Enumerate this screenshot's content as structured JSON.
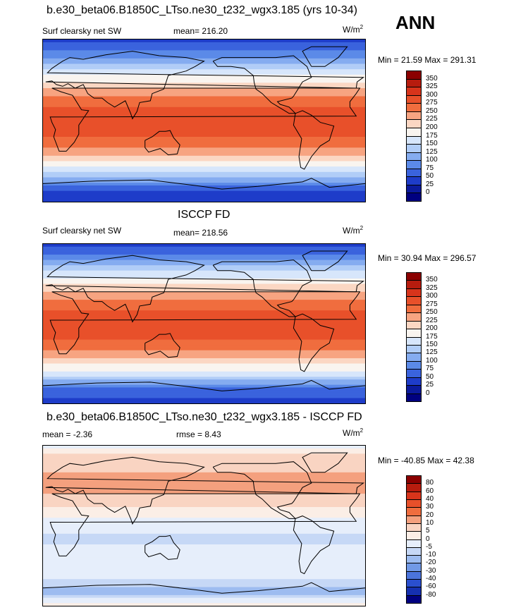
{
  "header": {
    "run_title": "b.e30_beta06.B1850C_LTso.ne30_t232_wgx3.185 (yrs 10-34)",
    "season": "ANN"
  },
  "panels": [
    {
      "title": "",
      "variable": "Surf clearsky net SW",
      "stat_left": "mean= 216.20",
      "stat_right": "",
      "units": "W/m",
      "units_sup": "2",
      "minmax": "Min =  21.59 Max = 291.31",
      "colorbar_labels": [
        "350",
        "325",
        "300",
        "275",
        "250",
        "225",
        "200",
        "175",
        "150",
        "125",
        "100",
        "75",
        "50",
        "25",
        "0"
      ],
      "colors": [
        "#8b0000",
        "#b71c0e",
        "#d8341b",
        "#e8502a",
        "#f06d3e",
        "#f7a481",
        "#fbd7c3",
        "#f9f4ef",
        "#d7e6fb",
        "#b1cdf7",
        "#85acf0",
        "#5b8ae8",
        "#3a63dd",
        "#1e3cc9",
        "#0b1a9c",
        "#000080"
      ]
    },
    {
      "title": "ISCCP FD",
      "variable": "Surf clearsky net SW",
      "stat_left": "mean= 218.56",
      "stat_right": "",
      "units": "W/m",
      "units_sup": "2",
      "minmax": "Min =  30.94 Max = 296.57",
      "colorbar_labels": [
        "350",
        "325",
        "300",
        "275",
        "250",
        "225",
        "200",
        "175",
        "150",
        "125",
        "100",
        "75",
        "50",
        "25",
        "0"
      ],
      "colors": [
        "#8b0000",
        "#b71c0e",
        "#d8341b",
        "#e8502a",
        "#f06d3e",
        "#f7a481",
        "#fbd7c3",
        "#f9f4ef",
        "#d7e6fb",
        "#b1cdf7",
        "#85acf0",
        "#5b8ae8",
        "#3a63dd",
        "#1e3cc9",
        "#0b1a9c",
        "#000080"
      ]
    },
    {
      "title": "b.e30_beta06.B1850C_LTso.ne30_t232_wgx3.185 - ISCCP FD",
      "variable": "mean =  -2.36",
      "stat_left": "rmse =   8.43",
      "stat_right": "",
      "units": "W/m",
      "units_sup": "2",
      "minmax": "Min = -40.85 Max =  42.38",
      "colorbar_labels": [
        "80",
        "60",
        "40",
        "30",
        "20",
        "10",
        "5",
        "0",
        "-5",
        "-10",
        "-20",
        "-30",
        "-40",
        "-60",
        "-80"
      ],
      "colors": [
        "#8b0000",
        "#b71c0e",
        "#d8341b",
        "#e8502a",
        "#f06d3e",
        "#f4a07e",
        "#f9d4c2",
        "#fbeee6",
        "#e6eefb",
        "#c6d8f6",
        "#9dbcf0",
        "#7199e6",
        "#4b74dc",
        "#2a4fcf",
        "#1530b0",
        "#000080"
      ]
    }
  ],
  "chart_data": [
    {
      "type": "heatmap",
      "title": "b.e30_beta06.B1850C_LTso.ne30_t232_wgx3.185 (yrs 10-34)",
      "variable": "Surf clearsky net SW",
      "units": "W/m2",
      "mean": 216.2,
      "min": 21.59,
      "max": 291.31,
      "levels": [
        0,
        25,
        50,
        75,
        100,
        125,
        150,
        175,
        200,
        225,
        250,
        275,
        300,
        325,
        350
      ],
      "zonal_profile": {
        "lat": [
          90,
          75,
          60,
          45,
          30,
          15,
          0,
          -15,
          -30,
          -45,
          -60,
          -75,
          -90
        ],
        "value": [
          40,
          80,
          140,
          195,
          240,
          275,
          285,
          280,
          250,
          200,
          140,
          60,
          25
        ]
      }
    },
    {
      "type": "heatmap",
      "title": "ISCCP FD",
      "variable": "Surf clearsky net SW",
      "units": "W/m2",
      "mean": 218.56,
      "min": 30.94,
      "max": 296.57,
      "levels": [
        0,
        25,
        50,
        75,
        100,
        125,
        150,
        175,
        200,
        225,
        250,
        275,
        300,
        325,
        350
      ],
      "zonal_profile": {
        "lat": [
          90,
          75,
          60,
          45,
          30,
          15,
          0,
          -15,
          -30,
          -45,
          -60,
          -75,
          -90
        ],
        "value": [
          45,
          85,
          145,
          200,
          245,
          275,
          285,
          280,
          250,
          205,
          145,
          65,
          35
        ]
      }
    },
    {
      "type": "heatmap",
      "title": "b.e30_beta06.B1850C_LTso.ne30_t232_wgx3.185 - ISCCP FD",
      "units": "W/m2",
      "mean": -2.36,
      "rmse": 8.43,
      "min": -40.85,
      "max": 42.38,
      "levels": [
        -80,
        -60,
        -40,
        -30,
        -20,
        -10,
        -5,
        0,
        5,
        10,
        20,
        30,
        40,
        60,
        80
      ],
      "zonal_profile": {
        "lat": [
          90,
          75,
          60,
          45,
          30,
          15,
          0,
          -15,
          -30,
          -45,
          -60,
          -75,
          -90
        ],
        "value": [
          -2,
          8,
          10,
          12,
          8,
          2,
          -3,
          -6,
          -4,
          -4,
          -5,
          -15,
          5
        ]
      }
    }
  ]
}
